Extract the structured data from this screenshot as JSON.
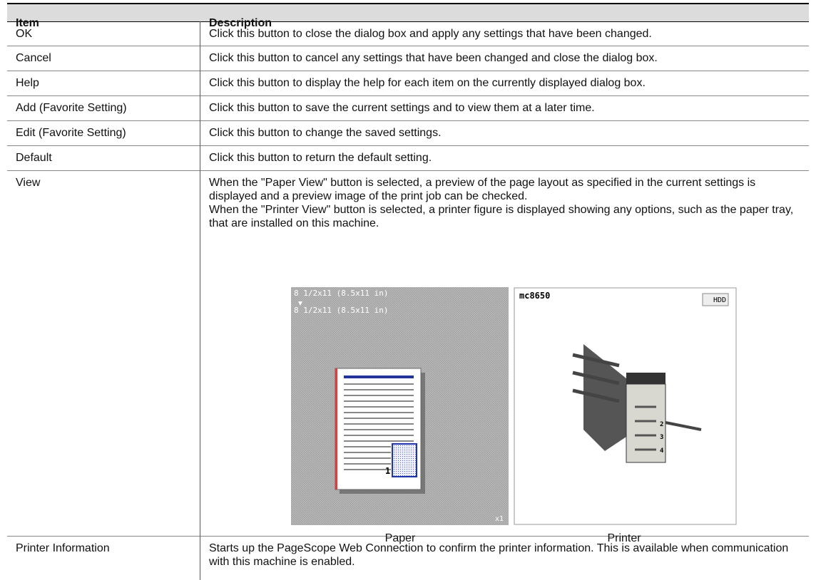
{
  "table": {
    "header": [
      "Item",
      "Description"
    ],
    "rows": [
      [
        "OK",
        "Click this button to close the dialog box and apply any settings that have been changed."
      ],
      [
        "Cancel",
        "Click this button to cancel any settings that have been changed and close the dialog box."
      ],
      [
        "Help",
        "Click this button to display the help for each item on the currently displayed dialog box."
      ],
      [
        "Add (Favorite Setting)",
        "Click this button to save the current settings and to view them at a later time."
      ],
      [
        "Edit (Favorite Setting)",
        "Click this button to change the saved settings."
      ],
      [
        "Default",
        "Click this button to return the default setting."
      ],
      [
        "View",
        "When the \"Paper View\" button is selected, a preview of the page layout as specified in the current settings is displayed and a preview image of the print job can be checked.",
        "When the \"Printer View\" button is selected, a printer figure is displayed showing any options, such as the paper tray, that are installed on this machine."
      ],
      [
        "Printer Information",
        "Starts up the PageScope Web Connection to confirm the printer information. This is available when communication with this machine is enabled."
      ]
    ]
  },
  "figures": {
    "paper": {
      "original_size": "8 1/2x11 (8.5x11 in)",
      "output_size": "8 1/2x11 (8.5x11 in)",
      "page_number": "1",
      "copies": "x1",
      "caption": "Paper"
    },
    "printer": {
      "model": "mc8650",
      "option": "HDD",
      "trays": [
        "2",
        "3",
        "4"
      ],
      "caption": "Printer"
    }
  }
}
